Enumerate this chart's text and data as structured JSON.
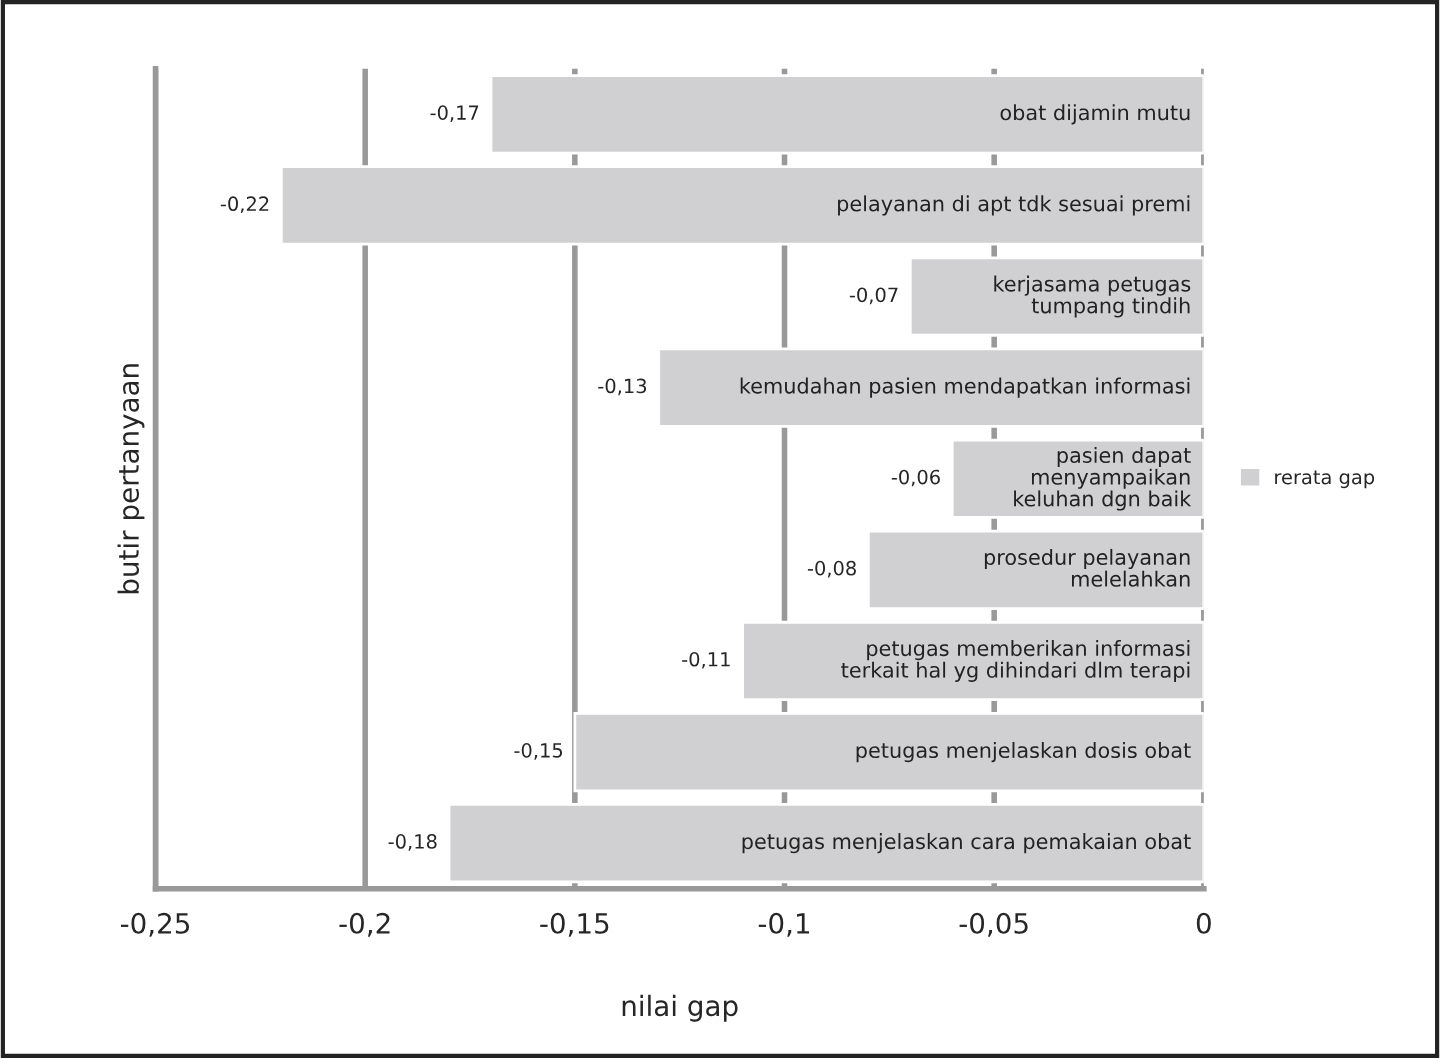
{
  "chart_data": {
    "type": "bar",
    "orientation": "horizontal",
    "xlabel": "nilai gap",
    "ylabel": "butir pertanyaan",
    "categories": [
      "obat dijamin mutu",
      "pelayanan di apt tdk sesuai premi",
      "kerjasama petugas\ntumpang tindih",
      "kemudahan pasien mendapatkan informasi",
      "pasien dapat\nmenyampaikan\nkeluhan dgn baik",
      "prosedur pelayanan\nmelelahkan",
      "petugas memberikan informasi\nterkait hal yg dihindari dlm terapi",
      "petugas menjelaskan dosis obat",
      "petugas menjelaskan cara pemakaian obat"
    ],
    "series": [
      {
        "name": "rerata gap",
        "color": "#d0d0d2",
        "values": [
          -0.17,
          -0.22,
          -0.07,
          -0.13,
          -0.06,
          -0.08,
          -0.11,
          -0.15,
          -0.18
        ],
        "value_labels": [
          "-0,17",
          "-0,22",
          "-0,07",
          "-0,13",
          "-0,06",
          "-0,08",
          "-0,11",
          "-0,15",
          "-0,18"
        ]
      }
    ],
    "xlim": [
      -0.25,
      0
    ],
    "xticks": [
      {
        "value": -0.25,
        "label": "-0,25"
      },
      {
        "value": -0.2,
        "label": "-0,2"
      },
      {
        "value": -0.15,
        "label": "-0,15"
      },
      {
        "value": -0.1,
        "label": "-0,1"
      },
      {
        "value": -0.05,
        "label": "-0,05"
      },
      0
    ],
    "grid": "x",
    "legend": "right",
    "tick_labels": "x"
  }
}
